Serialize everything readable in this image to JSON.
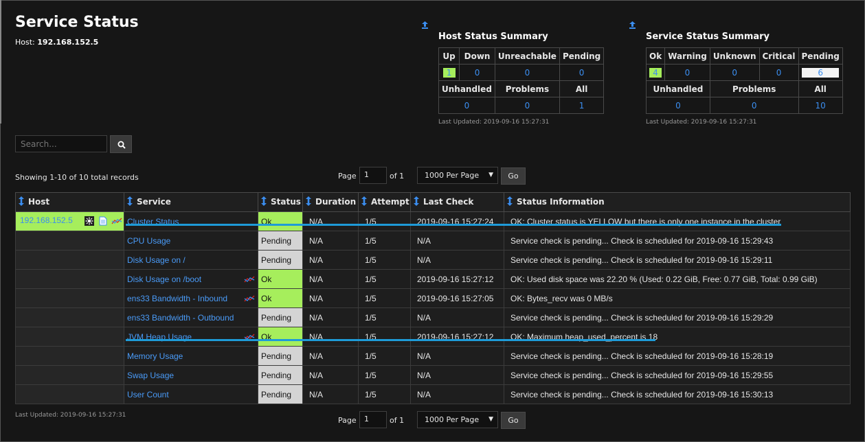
{
  "page": {
    "title": "Service Status",
    "host_label": "Host:",
    "host_value": "192.168.152.5"
  },
  "host_summary": {
    "title": "Host Status Summary",
    "headers1": [
      "Up",
      "Down",
      "Unreachable",
      "Pending"
    ],
    "values1": [
      "1",
      "0",
      "0",
      "0"
    ],
    "headers2": [
      "Unhandled",
      "Problems",
      "All"
    ],
    "values2": [
      "0",
      "0",
      "1"
    ],
    "last_updated": "Last Updated: 2019-09-16 15:27:31"
  },
  "service_summary": {
    "title": "Service Status Summary",
    "headers1": [
      "Ok",
      "Warning",
      "Unknown",
      "Critical",
      "Pending"
    ],
    "values1": [
      "4",
      "0",
      "0",
      "0",
      "6"
    ],
    "headers2": [
      "Unhandled",
      "Problems",
      "All"
    ],
    "values2": [
      "0",
      "0",
      "10"
    ],
    "last_updated": "Last Updated: 2019-09-16 15:27:31"
  },
  "search": {
    "placeholder": "Search..."
  },
  "records": {
    "showing": "Showing 1-10 of 10 total records"
  },
  "pager": {
    "page_label": "Page",
    "page_value": "1",
    "of_label": "of 1",
    "per_page": "1000 Per Page",
    "go": "Go"
  },
  "table": {
    "columns": [
      "Host",
      "Service",
      "Status",
      "Duration",
      "Attempt",
      "Last Check",
      "Status Information"
    ],
    "rows": [
      {
        "host": "192.168.152.5",
        "service": "Cluster Status",
        "status": "Ok",
        "duration": "N/A",
        "attempt": "1/5",
        "last_check": "2019-09-16 15:27:24",
        "info": "OK: Cluster status is YELLOW but there is only one instance in the cluster"
      },
      {
        "host": "",
        "service": "CPU Usage",
        "status": "Pending",
        "duration": "N/A",
        "attempt": "1/5",
        "last_check": "N/A",
        "info": "Service check is pending... Check is scheduled for 2019-09-16 15:29:43"
      },
      {
        "host": "",
        "service": "Disk Usage on /",
        "status": "Pending",
        "duration": "N/A",
        "attempt": "1/5",
        "last_check": "N/A",
        "info": "Service check is pending... Check is scheduled for 2019-09-16 15:29:11"
      },
      {
        "host": "",
        "service": "Disk Usage on /boot",
        "status": "Ok",
        "duration": "N/A",
        "attempt": "1/5",
        "last_check": "2019-09-16 15:27:12",
        "info": "OK: Used disk space was 22.20 % (Used: 0.22 GiB, Free: 0.77 GiB, Total: 0.99 GiB)"
      },
      {
        "host": "",
        "service": "ens33 Bandwidth - Inbound",
        "status": "Ok",
        "duration": "N/A",
        "attempt": "1/5",
        "last_check": "2019-09-16 15:27:05",
        "info": "OK: Bytes_recv was 0 MB/s"
      },
      {
        "host": "",
        "service": "ens33 Bandwidth - Outbound",
        "status": "Pending",
        "duration": "N/A",
        "attempt": "1/5",
        "last_check": "N/A",
        "info": "Service check is pending... Check is scheduled for 2019-09-16 15:29:29"
      },
      {
        "host": "",
        "service": "JVM Heap Usage",
        "status": "Ok",
        "duration": "N/A",
        "attempt": "1/5",
        "last_check": "2019-09-16 15:27:12",
        "info": "OK: Maximum heap_used_percent is 18"
      },
      {
        "host": "",
        "service": "Memory Usage",
        "status": "Pending",
        "duration": "N/A",
        "attempt": "1/5",
        "last_check": "N/A",
        "info": "Service check is pending... Check is scheduled for 2019-09-16 15:28:19"
      },
      {
        "host": "",
        "service": "Swap Usage",
        "status": "Pending",
        "duration": "N/A",
        "attempt": "1/5",
        "last_check": "N/A",
        "info": "Service check is pending... Check is scheduled for 2019-09-16 15:29:55"
      },
      {
        "host": "",
        "service": "User Count",
        "status": "Pending",
        "duration": "N/A",
        "attempt": "1/5",
        "last_check": "N/A",
        "info": "Service check is pending... Check is scheduled for 2019-09-16 15:30:13"
      }
    ]
  },
  "footer": {
    "last_updated": "Last Updated: 2019-09-16 15:27:31"
  },
  "colors": {
    "ok": "#a6ee5c",
    "pending": "#d4d4d4",
    "link": "#3b8ef0",
    "highlight_line": "#1e9bd8"
  }
}
